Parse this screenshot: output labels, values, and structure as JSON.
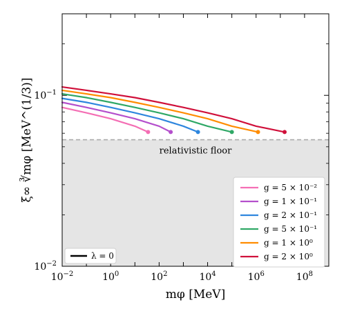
{
  "chart_data": {
    "type": "line",
    "xscale": "log",
    "yscale": "log",
    "xlim": [
      0.01,
      1000000000
    ],
    "ylim": [
      0.01,
      0.3
    ],
    "xlabel": "mφ [MeV]",
    "ylabel": "ξ∞ ∛mφ [MeV^(1/3)]",
    "x_ticks": [
      {
        "value": 0.01,
        "base": "10",
        "exp": "−2"
      },
      {
        "value": 1,
        "base": "10",
        "exp": "0"
      },
      {
        "value": 100,
        "base": "10",
        "exp": "2"
      },
      {
        "value": 10000,
        "base": "10",
        "exp": "4"
      },
      {
        "value": 1000000,
        "base": "10",
        "exp": "6"
      },
      {
        "value": 100000000,
        "base": "10",
        "exp": "8"
      }
    ],
    "y_ticks": [
      {
        "value": 0.01,
        "base": "10",
        "exp": "−2"
      },
      {
        "value": 0.1,
        "base": "10",
        "exp": "−1"
      }
    ],
    "floor": {
      "value": 0.055,
      "label": "relativistic floor",
      "color": "#aaaaaa",
      "shade": "#e5e5e5"
    },
    "series": [
      {
        "name": "g = 5 × 10⁻²",
        "color": "#f46eb4",
        "x": [
          0.01,
          0.1,
          1,
          10,
          35
        ],
        "y": [
          0.085,
          0.079,
          0.073,
          0.066,
          0.061
        ]
      },
      {
        "name": "g = 1 × 10⁻¹",
        "color": "#b44fcc",
        "x": [
          0.01,
          0.1,
          1,
          10,
          100,
          300
        ],
        "y": [
          0.091,
          0.085,
          0.079,
          0.073,
          0.066,
          0.061
        ]
      },
      {
        "name": "g = 2 × 10⁻¹",
        "color": "#2e86de",
        "x": [
          0.01,
          0.1,
          1,
          10,
          100,
          1000,
          4000
        ],
        "y": [
          0.096,
          0.091,
          0.085,
          0.079,
          0.073,
          0.066,
          0.061
        ]
      },
      {
        "name": "g = 5 × 10⁻¹",
        "color": "#2fa866",
        "x": [
          0.01,
          0.1,
          1,
          10,
          100,
          1000,
          10000,
          100000
        ],
        "y": [
          0.102,
          0.097,
          0.091,
          0.085,
          0.079,
          0.073,
          0.066,
          0.061
        ]
      },
      {
        "name": "g = 1 × 10⁰",
        "color": "#ff8c00",
        "x": [
          0.01,
          0.1,
          1,
          10,
          100,
          1000,
          10000,
          100000,
          1200000
        ],
        "y": [
          0.107,
          0.102,
          0.097,
          0.091,
          0.085,
          0.079,
          0.073,
          0.066,
          0.061
        ]
      },
      {
        "name": "g = 2 × 10⁰",
        "color": "#d0103a",
        "x": [
          0.01,
          0.1,
          1,
          10,
          100,
          1000,
          10000,
          100000,
          1000000,
          15000000
        ],
        "y": [
          0.112,
          0.107,
          0.102,
          0.097,
          0.091,
          0.085,
          0.079,
          0.073,
          0.066,
          0.061
        ]
      }
    ],
    "legend_lower_right": "top-right of the shaded floor region (lower-right of axes)",
    "legend_lower_left": {
      "label": "λ = 0",
      "color": "#000000"
    }
  }
}
